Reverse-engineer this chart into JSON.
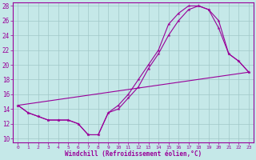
{
  "xlabel": "Windchill (Refroidissement éolien,°C)",
  "bg_color": "#c5e8e8",
  "grid_color": "#a0c8c8",
  "line_color": "#990099",
  "xlim": [
    -0.5,
    23.5
  ],
  "ylim": [
    9.5,
    28.5
  ],
  "yticks": [
    10,
    12,
    14,
    16,
    18,
    20,
    22,
    24,
    26,
    28
  ],
  "xticks": [
    0,
    1,
    2,
    3,
    4,
    5,
    6,
    7,
    8,
    9,
    10,
    11,
    12,
    13,
    14,
    15,
    16,
    17,
    18,
    19,
    20,
    21,
    22,
    23
  ],
  "line1_x": [
    0,
    1,
    2,
    3,
    4,
    5,
    6,
    7,
    8,
    9,
    10,
    11,
    12,
    13,
    14,
    15,
    16,
    17,
    18,
    19,
    20,
    21,
    22,
    23
  ],
  "line1_y": [
    14.5,
    13.5,
    13.0,
    12.5,
    12.5,
    12.5,
    12.0,
    10.5,
    10.5,
    13.5,
    14.0,
    15.5,
    17.0,
    19.5,
    21.5,
    24.0,
    26.0,
    27.5,
    28.0,
    27.5,
    26.0,
    21.5,
    20.5,
    19.0
  ],
  "line2_x": [
    0,
    1,
    2,
    3,
    4,
    5,
    6,
    7,
    8,
    9,
    10,
    11,
    12,
    13,
    14,
    15,
    16,
    17,
    18,
    19,
    20,
    21,
    22,
    23
  ],
  "line2_y": [
    14.5,
    13.5,
    13.0,
    12.5,
    12.5,
    12.5,
    12.0,
    10.5,
    10.5,
    13.5,
    14.5,
    16.0,
    18.0,
    20.0,
    22.0,
    25.5,
    27.0,
    28.0,
    28.0,
    27.5,
    25.0,
    21.5,
    20.5,
    19.0
  ],
  "line3_x": [
    0,
    23
  ],
  "line3_y": [
    14.5,
    19.0
  ]
}
